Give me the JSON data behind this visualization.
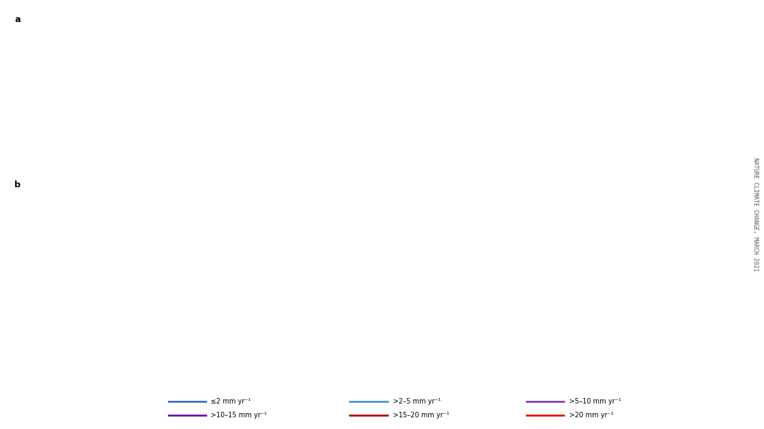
{
  "title_a": "a",
  "title_b": "b",
  "source_text": "NATURE CLIMATE CHANGE, MARCH 2021",
  "background_color": "#ffffff",
  "map_a_default_color": "#3050d0",
  "map_a_se_asia_color": "#4b0082",
  "map_b_default_color": "#4090d0",
  "map_b_purple_color": "#7030a0",
  "map_b_se_asia_color": "#e81010",
  "legend": {
    "row1": [
      {
        "label": "≤2 mm yr⁻¹",
        "color": "#4070d0"
      },
      {
        "label": ">2–5 mm yr⁻¹",
        "color": "#5090d0"
      },
      {
        "label": ">5–10 mm yr⁻¹",
        "color": "#8040b0"
      }
    ],
    "row2": [
      {
        "label": ">10–15 mm yr⁻¹",
        "color": "#6a0dad"
      },
      {
        "label": ">15–20 mm yr⁻¹",
        "color": "#b00000"
      },
      {
        "label": ">20 mm yr⁻¹",
        "color": "#e81010"
      }
    ]
  },
  "map_a_regions": {
    "se_asia_high": {
      "lon_min": 95,
      "lon_max": 145,
      "lat_min": -12,
      "lat_max": 25,
      "color": "#4b0082"
    }
  },
  "map_b_regions": {
    "se_asia_red": {
      "lon_min": 93,
      "lon_max": 145,
      "lat_min": -12,
      "lat_max": 22,
      "color": "#e81010"
    },
    "east_asia_purple": {
      "lon_min": 100,
      "lon_max": 145,
      "lat_min": 22,
      "lat_max": 50,
      "color": "#7030a0"
    },
    "south_asia_purple": {
      "lon_min": 60,
      "lon_max": 100,
      "lat_min": 0,
      "lat_max": 30,
      "color": "#7030a0"
    },
    "middle_east_purple": {
      "lon_min": 25,
      "lon_max": 62,
      "lat_min": 10,
      "lat_max": 48,
      "color": "#7030a0"
    }
  }
}
